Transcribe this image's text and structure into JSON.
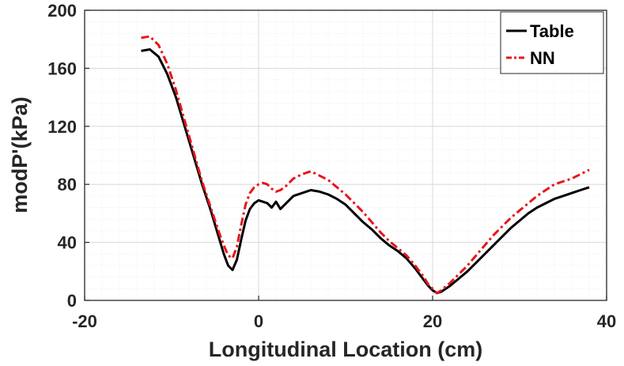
{
  "chart_data": {
    "type": "line",
    "xlabel": "Longitudinal Location (cm)",
    "ylabel": "modP'(kPa)",
    "xlim": [
      -20,
      40
    ],
    "ylim": [
      0,
      200
    ],
    "xticks": [
      -20,
      0,
      20,
      40
    ],
    "yticks": [
      0,
      40,
      80,
      120,
      160,
      200
    ],
    "grid": true,
    "legend_position": "top-right",
    "series": [
      {
        "name": "Table",
        "color": "#000000",
        "line_style": "solid",
        "x": [
          -13.5,
          -12.5,
          -11.5,
          -10.5,
          -9.5,
          -8.5,
          -7.5,
          -6.5,
          -5.5,
          -4.5,
          -4,
          -3.5,
          -3,
          -2.5,
          -2,
          -1.5,
          -1,
          -0.5,
          0,
          0.5,
          1,
          1.5,
          2,
          2.5,
          3,
          3.5,
          4,
          5,
          6,
          7,
          8,
          9,
          10,
          11,
          12,
          13,
          14,
          15,
          16,
          17,
          18,
          19,
          19.5,
          20,
          20.5,
          21,
          22,
          23,
          24,
          25,
          26,
          27,
          28,
          29,
          30,
          31,
          32,
          33,
          34,
          35,
          36,
          37,
          38
        ],
        "y": [
          172,
          173,
          168,
          156,
          140,
          120,
          100,
          80,
          62,
          42,
          32,
          24,
          21,
          28,
          42,
          55,
          63,
          67,
          69,
          68,
          67,
          64,
          68,
          63,
          66,
          69,
          72,
          74,
          76,
          75,
          73,
          70,
          66,
          60,
          54,
          49,
          43,
          38,
          34,
          29,
          22,
          14,
          10,
          7,
          5,
          6,
          10,
          15,
          20,
          26,
          32,
          38,
          44,
          50,
          55,
          60,
          64,
          67,
          70,
          72,
          74,
          76,
          78
        ]
      },
      {
        "name": "NN",
        "color": "#e8151b",
        "line_style": "dash-dot",
        "x": [
          -13.5,
          -12.5,
          -11.5,
          -10.5,
          -9.5,
          -8.5,
          -7.5,
          -6.5,
          -5.5,
          -4.5,
          -4,
          -3.5,
          -3,
          -2.5,
          -2,
          -1.5,
          -1,
          -0.5,
          0,
          0.5,
          1,
          1.5,
          2,
          2.5,
          3,
          3.5,
          4,
          5,
          6,
          7,
          8,
          9,
          10,
          11,
          12,
          13,
          14,
          15,
          16,
          17,
          18,
          19,
          19.5,
          20,
          20.5,
          21,
          22,
          23,
          24,
          25,
          26,
          27,
          28,
          29,
          30,
          31,
          32,
          33,
          34,
          35,
          36,
          37,
          38
        ],
        "y": [
          181,
          182,
          176,
          163,
          145,
          124,
          103,
          82,
          64,
          46,
          38,
          31,
          29,
          37,
          52,
          66,
          74,
          78,
          80,
          81,
          80,
          77,
          75,
          76,
          78,
          81,
          84,
          87,
          89,
          86,
          83,
          78,
          73,
          67,
          61,
          54,
          47,
          41,
          36,
          31,
          24,
          16,
          11,
          8,
          5,
          7,
          12,
          18,
          24,
          31,
          38,
          45,
          51,
          57,
          62,
          67,
          72,
          76,
          80,
          82,
          84,
          87,
          90
        ]
      }
    ]
  }
}
